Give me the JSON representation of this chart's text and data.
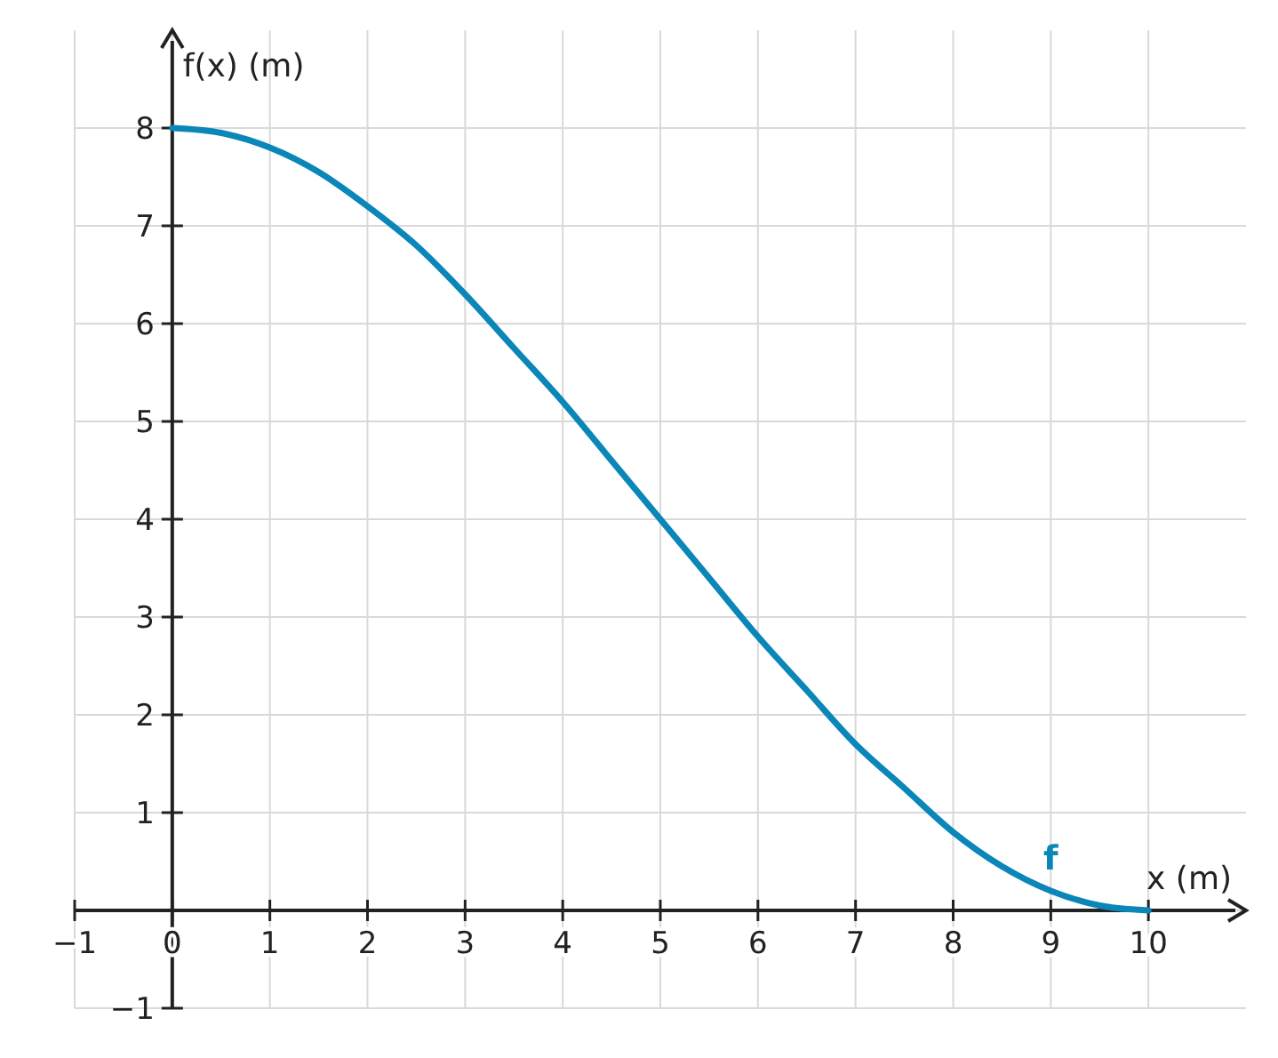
{
  "chart_data": {
    "type": "line",
    "xlabel": "x (m)",
    "ylabel": "f(x) (m)",
    "xlim": [
      -1,
      11
    ],
    "ylim": [
      -1,
      9
    ],
    "xticks": [
      {
        "value": -1,
        "label": "−1"
      },
      0,
      1,
      2,
      3,
      4,
      5,
      6,
      7,
      8,
      9,
      10
    ],
    "yticks": [
      {
        "value": -1,
        "label": "−1"
      },
      {
        "value": 0,
        "label": null
      },
      1,
      2,
      3,
      4,
      5,
      6,
      7,
      8
    ],
    "grid": true,
    "marker": "none",
    "line_style": "solid",
    "series": [
      {
        "name": "f",
        "color": "#0a86b8",
        "x": [
          0,
          0.5,
          1,
          1.5,
          2,
          2.5,
          3,
          3.5,
          4,
          4.5,
          5,
          5.5,
          6,
          6.5,
          7,
          7.5,
          8,
          8.5,
          9,
          9.5,
          10
        ],
        "values": [
          8,
          7.95,
          7.8,
          7.55,
          7.2,
          6.8,
          6.3,
          5.75,
          5.2,
          4.6,
          4,
          3.4,
          2.8,
          2.25,
          1.7,
          1.25,
          0.8,
          0.45,
          0.2,
          0.05,
          0
        ]
      }
    ]
  }
}
